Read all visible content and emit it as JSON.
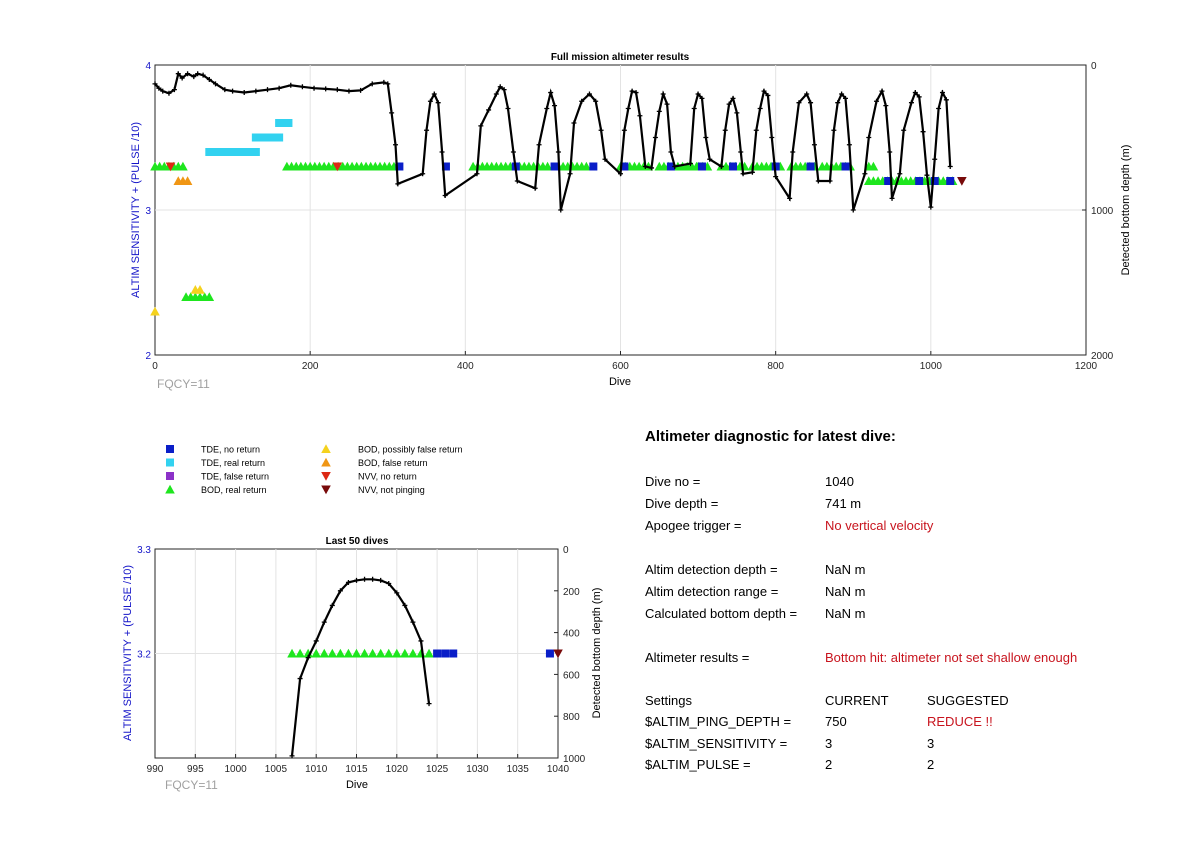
{
  "main_chart": {
    "title": "Full mission altimeter results",
    "xlabel": "Dive",
    "ylabel_left": "ALTIM SENSITIVITY + (PULSE /10)",
    "ylabel_right": "Detected bottom depth (m)",
    "note": "FQCY=11",
    "x_ticks": [
      "0",
      "200",
      "400",
      "600",
      "800",
      "1000",
      "1200"
    ],
    "y_left_ticks": [
      "2",
      "3",
      "4"
    ],
    "y_right_ticks": [
      "0",
      "1000",
      "2000"
    ]
  },
  "last50_chart": {
    "title": "Last 50 dives",
    "xlabel": "Dive",
    "ylabel_left": "ALTIM SENSITIVITY + (PULSE /10)",
    "ylabel_right": "Detected bottom depth (m)",
    "note": "FQCY=11",
    "x_ticks": [
      "990",
      "995",
      "1000",
      "1005",
      "1010",
      "1015",
      "1020",
      "1025",
      "1030",
      "1035",
      "1040"
    ],
    "y_left_ticks": [
      "3.2",
      "3.3"
    ],
    "y_right_ticks": [
      "0",
      "200",
      "400",
      "600",
      "800",
      "1000"
    ]
  },
  "legend": {
    "items": [
      {
        "label": "TDE, no return",
        "color": "#0a1ec8",
        "marker": "square"
      },
      {
        "label": "TDE, real return",
        "color": "#32d2f0",
        "marker": "square"
      },
      {
        "label": "TDE, false return",
        "color": "#8c32c8",
        "marker": "square"
      },
      {
        "label": "BOD, real return",
        "color": "#1ee61e",
        "marker": "triangle-up"
      },
      {
        "label": "BOD, possibly false return",
        "color": "#f5d21e",
        "marker": "triangle-up"
      },
      {
        "label": "BOD, false return",
        "color": "#f09614",
        "marker": "triangle-up"
      },
      {
        "label": "NVV, no return",
        "color": "#dc2814",
        "marker": "triangle-down"
      },
      {
        "label": "NVV, not pinging",
        "color": "#780a0a",
        "marker": "triangle-down"
      }
    ]
  },
  "diagnostic": {
    "title": "Altimeter diagnostic for latest dive:",
    "dive_no_label": "Dive no =",
    "dive_no": "1040",
    "dive_depth_label": "Dive depth =",
    "dive_depth": "741 m",
    "apogee_label": "Apogee trigger =",
    "apogee": "No vertical velocity",
    "det_depth_label": "Altim detection depth =",
    "det_depth": "NaN m",
    "det_range_label": "Altim detection range =",
    "det_range": "NaN m",
    "calc_label": "Calculated bottom depth =",
    "calc": "NaN m",
    "results_label": "Altimeter results =",
    "results": "Bottom hit: altimeter not set shallow enough",
    "settings_label": "Settings",
    "current_label": "CURRENT",
    "suggested_label": "SUGGESTED",
    "ping_label": "$ALTIM_PING_DEPTH =",
    "ping_current": "750",
    "ping_suggested": "REDUCE !!",
    "sens_label": "$ALTIM_SENSITIVITY =",
    "sens_current": "3",
    "sens_suggested": "3",
    "pulse_label": "$ALTIM_PULSE =",
    "pulse_current": "2",
    "pulse_suggested": "2"
  },
  "chart_data": [
    {
      "type": "scatter",
      "title": "Full mission altimeter results",
      "xlabel": "Dive",
      "ylabel": "ALTIM SENSITIVITY + (PULSE /10)",
      "ylabel_right": "Detected bottom depth (m)",
      "xlim": [
        0,
        1200
      ],
      "ylim": [
        2,
        4
      ],
      "ylim_right": [
        0,
        2000
      ],
      "right_axis_reversed": true,
      "grid": true,
      "marker_series": [
        {
          "name": "BOD, real return",
          "y": 3.3,
          "x_ranges": [
            [
              0,
              40
            ],
            [
              170,
              310
            ],
            [
              410,
              510
            ],
            [
              520,
              560
            ],
            [
              600,
              640
            ],
            [
              650,
              700
            ],
            [
              700,
              715
            ],
            [
              730,
              760
            ],
            [
              770,
              810
            ],
            [
              820,
              850
            ],
            [
              860,
              900
            ],
            [
              920,
              930
            ]
          ]
        },
        {
          "name": "BOD, real return",
          "y": 3.2,
          "x_ranges": [
            [
              920,
              1030
            ]
          ]
        },
        {
          "name": "BOD, real return",
          "y": 2.4,
          "x_ranges": [
            [
              40,
              75
            ]
          ]
        },
        {
          "name": "BOD, possibly false return",
          "y": 2.45,
          "x_ranges": [
            [
              52,
              62
            ]
          ]
        },
        {
          "name": "BOD, possibly false return",
          "y": 2.3,
          "x_ranges": [
            [
              0,
              5
            ]
          ]
        },
        {
          "name": "BOD, false return",
          "y": 3.2,
          "x_ranges": [
            [
              30,
              45
            ]
          ]
        },
        {
          "name": "TDE, real return",
          "y": 3.4,
          "x_ranges": [
            [
              70,
              135
            ]
          ]
        },
        {
          "name": "TDE, real return",
          "y": 3.5,
          "x_ranges": [
            [
              130,
              165
            ]
          ]
        },
        {
          "name": "TDE, real return",
          "y": 3.6,
          "x_ranges": [
            [
              160,
              175
            ]
          ]
        },
        {
          "name": "TDE, no return",
          "y": 3.3,
          "x_points": [
            315,
            375,
            465,
            515,
            565,
            605,
            665,
            705,
            745,
            800,
            845,
            890
          ]
        },
        {
          "name": "TDE, no return",
          "y": 3.2,
          "x_points": [
            945,
            985,
            1005,
            1025
          ]
        },
        {
          "name": "NVV, no return",
          "y": 3.3,
          "x_points": [
            20,
            235
          ]
        },
        {
          "name": "NVV, not pinging",
          "y": 3.2,
          "x_points": [
            1040
          ]
        }
      ],
      "depth_series": {
        "name": "Detected bottom depth",
        "points": [
          [
            0,
            130
          ],
          [
            5,
            160
          ],
          [
            10,
            180
          ],
          [
            18,
            195
          ],
          [
            25,
            170
          ],
          [
            30,
            60
          ],
          [
            35,
            90
          ],
          [
            42,
            60
          ],
          [
            50,
            80
          ],
          [
            55,
            60
          ],
          [
            62,
            70
          ],
          [
            70,
            100
          ],
          [
            78,
            130
          ],
          [
            90,
            170
          ],
          [
            100,
            180
          ],
          [
            115,
            190
          ],
          [
            130,
            180
          ],
          [
            145,
            170
          ],
          [
            160,
            160
          ],
          [
            175,
            140
          ],
          [
            190,
            150
          ],
          [
            205,
            160
          ],
          [
            220,
            165
          ],
          [
            235,
            170
          ],
          [
            250,
            180
          ],
          [
            265,
            175
          ],
          [
            280,
            130
          ],
          [
            295,
            120
          ],
          [
            300,
            130
          ],
          [
            305,
            330
          ],
          [
            310,
            550
          ],
          [
            313,
            820
          ],
          [
            345,
            750
          ],
          [
            350,
            450
          ],
          [
            355,
            250
          ],
          [
            360,
            200
          ],
          [
            365,
            260
          ],
          [
            370,
            600
          ],
          [
            374,
            900
          ],
          [
            415,
            750
          ],
          [
            420,
            420
          ],
          [
            430,
            310
          ],
          [
            440,
            200
          ],
          [
            445,
            150
          ],
          [
            450,
            170
          ],
          [
            455,
            300
          ],
          [
            462,
            600
          ],
          [
            467,
            800
          ],
          [
            490,
            850
          ],
          [
            495,
            550
          ],
          [
            505,
            300
          ],
          [
            510,
            190
          ],
          [
            515,
            280
          ],
          [
            520,
            600
          ],
          [
            523,
            1000
          ],
          [
            535,
            750
          ],
          [
            540,
            400
          ],
          [
            550,
            250
          ],
          [
            560,
            200
          ],
          [
            568,
            250
          ],
          [
            575,
            450
          ],
          [
            580,
            650
          ],
          [
            600,
            750
          ],
          [
            605,
            450
          ],
          [
            610,
            300
          ],
          [
            615,
            180
          ],
          [
            620,
            190
          ],
          [
            625,
            350
          ],
          [
            632,
            700
          ],
          [
            640,
            710
          ],
          [
            645,
            500
          ],
          [
            650,
            320
          ],
          [
            655,
            200
          ],
          [
            660,
            270
          ],
          [
            665,
            600
          ],
          [
            670,
            700
          ],
          [
            690,
            680
          ],
          [
            695,
            300
          ],
          [
            700,
            200
          ],
          [
            705,
            230
          ],
          [
            710,
            500
          ],
          [
            715,
            650
          ],
          [
            730,
            700
          ],
          [
            735,
            450
          ],
          [
            740,
            270
          ],
          [
            745,
            230
          ],
          [
            750,
            330
          ],
          [
            755,
            600
          ],
          [
            758,
            750
          ],
          [
            770,
            740
          ],
          [
            775,
            450
          ],
          [
            780,
            300
          ],
          [
            785,
            180
          ],
          [
            790,
            210
          ],
          [
            795,
            500
          ],
          [
            800,
            770
          ],
          [
            818,
            920
          ],
          [
            822,
            600
          ],
          [
            830,
            260
          ],
          [
            840,
            200
          ],
          [
            845,
            260
          ],
          [
            850,
            550
          ],
          [
            855,
            800
          ],
          [
            870,
            800
          ],
          [
            875,
            450
          ],
          [
            880,
            260
          ],
          [
            885,
            200
          ],
          [
            890,
            230
          ],
          [
            895,
            550
          ],
          [
            900,
            1000
          ],
          [
            915,
            750
          ],
          [
            920,
            500
          ],
          [
            930,
            250
          ],
          [
            937,
            180
          ],
          [
            942,
            280
          ],
          [
            947,
            600
          ],
          [
            950,
            920
          ],
          [
            960,
            750
          ],
          [
            965,
            450
          ],
          [
            975,
            260
          ],
          [
            980,
            190
          ],
          [
            985,
            220
          ],
          [
            990,
            460
          ],
          [
            995,
            760
          ],
          [
            1000,
            980
          ],
          [
            1005,
            650
          ],
          [
            1010,
            300
          ],
          [
            1015,
            190
          ],
          [
            1020,
            240
          ],
          [
            1025,
            700
          ]
        ]
      }
    },
    {
      "type": "scatter",
      "title": "Last 50 dives",
      "xlabel": "Dive",
      "ylabel": "ALTIM SENSITIVITY + (PULSE /10)",
      "ylabel_right": "Detected bottom depth (m)",
      "xlim": [
        990,
        1040
      ],
      "ylim": [
        3.1,
        3.3
      ],
      "ylim_right": [
        0,
        1000
      ],
      "right_axis_reversed": true,
      "grid": true,
      "marker_series": [
        {
          "name": "BOD, real return",
          "y": 3.2,
          "x_points": [
            1007,
            1008,
            1009,
            1010,
            1011,
            1012,
            1013,
            1014,
            1015,
            1016,
            1017,
            1018,
            1019,
            1020,
            1021,
            1022,
            1023,
            1024
          ]
        },
        {
          "name": "TDE, no return",
          "y": 3.2,
          "x_points": [
            1025,
            1026,
            1027,
            1039
          ]
        },
        {
          "name": "NVV, not pinging",
          "y": 3.2,
          "x_points": [
            1040
          ]
        }
      ],
      "depth_series": {
        "name": "Detected bottom depth",
        "points": [
          [
            1007,
            990
          ],
          [
            1008,
            620
          ],
          [
            1009,
            520
          ],
          [
            1010,
            440
          ],
          [
            1011,
            350
          ],
          [
            1012,
            270
          ],
          [
            1013,
            200
          ],
          [
            1014,
            160
          ],
          [
            1015,
            150
          ],
          [
            1016,
            145
          ],
          [
            1017,
            145
          ],
          [
            1018,
            150
          ],
          [
            1019,
            165
          ],
          [
            1020,
            210
          ],
          [
            1021,
            270
          ],
          [
            1022,
            350
          ],
          [
            1023,
            440
          ],
          [
            1024,
            740
          ]
        ]
      }
    }
  ]
}
